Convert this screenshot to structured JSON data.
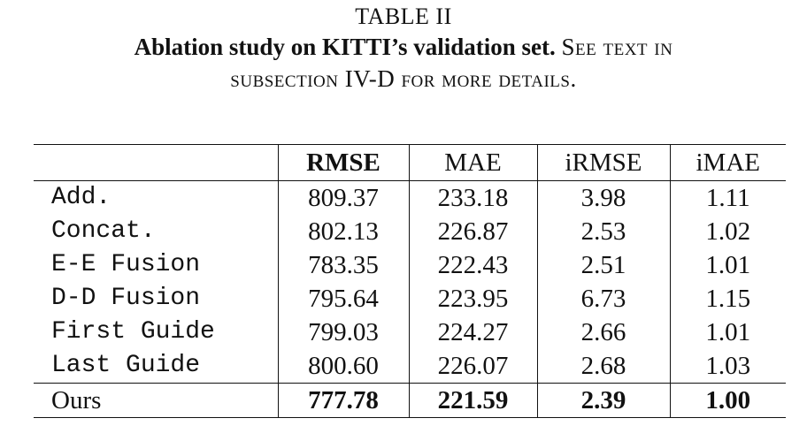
{
  "caption": {
    "label": "TABLE II",
    "title": "Ablation study on KITTI’s validation set.",
    "text_line1": "See text in",
    "text_line2": "subsection IV-D for more details."
  },
  "table": {
    "columns": [
      "",
      "RMSE",
      "MAE",
      "iRMSE",
      "iMAE"
    ],
    "rows": [
      {
        "name": "Add.",
        "values": [
          "809.37",
          "233.18",
          "3.98",
          "1.11"
        ]
      },
      {
        "name": "Concat.",
        "values": [
          "802.13",
          "226.87",
          "2.53",
          "1.02"
        ]
      },
      {
        "name": "E-E Fusion",
        "values": [
          "783.35",
          "222.43",
          "2.51",
          "1.01"
        ]
      },
      {
        "name": "D-D Fusion",
        "values": [
          "795.64",
          "223.95",
          "6.73",
          "1.15"
        ]
      },
      {
        "name": "First Guide",
        "values": [
          "799.03",
          "224.27",
          "2.66",
          "1.01"
        ]
      },
      {
        "name": "Last Guide",
        "values": [
          "800.60",
          "226.07",
          "2.68",
          "1.03"
        ]
      }
    ],
    "final_row": {
      "name": "Ours",
      "values": [
        "777.78",
        "221.59",
        "2.39",
        "1.00"
      ]
    }
  }
}
